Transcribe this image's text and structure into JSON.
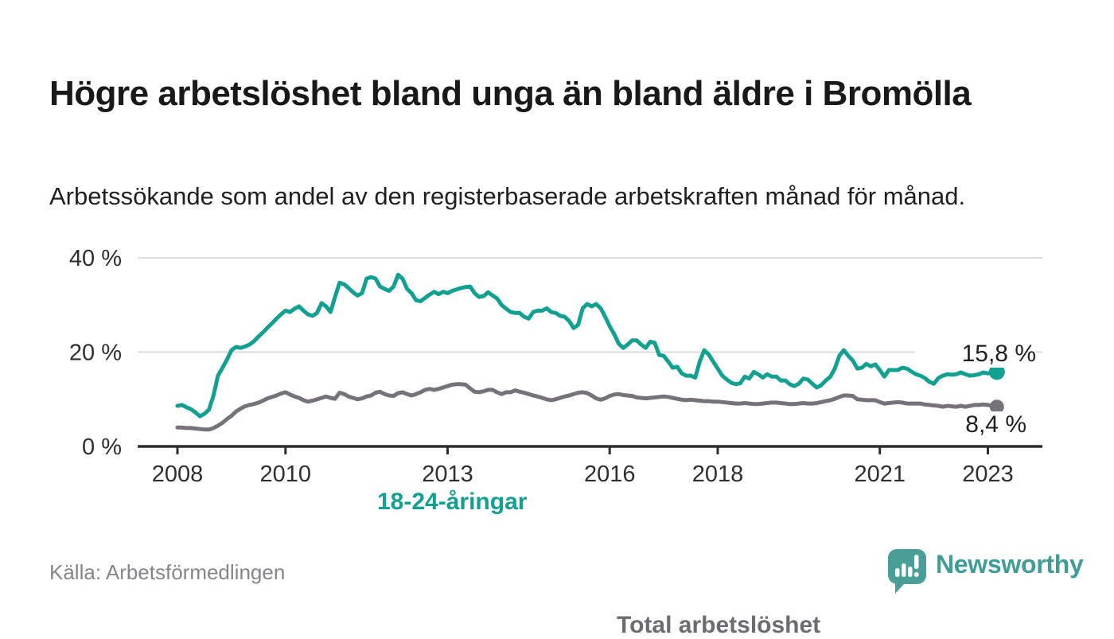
{
  "header": {
    "title": "Högre arbetslöshet bland unga än bland äldre i Bromölla",
    "subtitle": "Arbetssökande som andel av den registerbaserade arbetskraften månad för månad."
  },
  "footer": {
    "source": "Källa: Arbetsförmedlingen",
    "brand": "Newsworthy"
  },
  "colors": {
    "teal": "#12a091",
    "teal_brand": "#3f9c96",
    "gray_line": "#76717b",
    "gray_label": "#6e6a74",
    "title": "#191919",
    "subtitle": "#1f1f1f",
    "value": "#1f1f1f",
    "source": "#85858d",
    "grid": "#dcdcdc",
    "axis": "#2d2d2d"
  },
  "chart_data": {
    "type": "line",
    "x_start": "2008-01",
    "x_interval": "monthly",
    "x_end": "2023-03",
    "ylim": [
      0,
      42
    ],
    "grid": "horizontal-only",
    "y_ticks": [
      0,
      20,
      40
    ],
    "y_tick_labels": [
      "0 %",
      "20 %",
      "40 %"
    ],
    "x_tick_years": [
      2008,
      2010,
      2013,
      2016,
      2018,
      2021,
      2023
    ],
    "x_tick_labels": [
      "2008",
      "2010",
      "2013",
      "2016",
      "2018",
      "2021",
      "2023"
    ],
    "series": [
      {
        "name": "Total arbetslöshet",
        "label": "Total arbetslöshet",
        "end_label": "8,4 %",
        "end_value": 8.4,
        "color": "#76717b",
        "dot_radius": 9,
        "values": [
          4.0,
          4.0,
          3.9,
          3.9,
          3.8,
          3.7,
          3.6,
          3.6,
          3.9,
          4.4,
          5.0,
          5.8,
          6.5,
          7.4,
          8.0,
          8.5,
          8.8,
          9.0,
          9.3,
          9.7,
          10.2,
          10.5,
          10.8,
          11.2,
          11.5,
          11.0,
          10.6,
          10.3,
          9.8,
          9.5,
          9.7,
          10.0,
          10.3,
          10.6,
          10.3,
          10.1,
          11.4,
          11.1,
          10.6,
          10.3,
          10.0,
          10.2,
          10.6,
          10.8,
          11.4,
          11.6,
          11.1,
          10.8,
          10.7,
          11.3,
          11.5,
          11.1,
          10.8,
          11.1,
          11.5,
          12.0,
          12.2,
          12.0,
          12.2,
          12.5,
          12.8,
          13.1,
          13.2,
          13.2,
          13.1,
          12.3,
          11.6,
          11.5,
          11.7,
          12.0,
          12.0,
          11.5,
          11.1,
          11.5,
          11.5,
          11.9,
          11.6,
          11.4,
          11.1,
          10.8,
          10.6,
          10.3,
          10.0,
          9.8,
          10.0,
          10.3,
          10.6,
          10.8,
          11.1,
          11.4,
          11.5,
          11.3,
          10.8,
          10.2,
          9.9,
          10.2,
          10.7,
          11.0,
          11.1,
          10.9,
          10.8,
          10.7,
          10.4,
          10.3,
          10.2,
          10.3,
          10.4,
          10.5,
          10.6,
          10.5,
          10.3,
          10.1,
          9.9,
          9.8,
          9.9,
          9.8,
          9.7,
          9.6,
          9.6,
          9.5,
          9.5,
          9.4,
          9.3,
          9.2,
          9.1,
          9.1,
          9.2,
          9.1,
          9.0,
          9.0,
          9.1,
          9.2,
          9.3,
          9.3,
          9.2,
          9.1,
          9.0,
          9.0,
          9.1,
          9.2,
          9.1,
          9.1,
          9.2,
          9.4,
          9.6,
          9.8,
          10.1,
          10.5,
          10.8,
          10.8,
          10.7,
          10.0,
          9.9,
          9.8,
          9.8,
          9.8,
          9.4,
          9.1,
          9.2,
          9.3,
          9.4,
          9.3,
          9.1,
          9.1,
          9.1,
          9.1,
          8.9,
          8.8,
          8.7,
          8.6,
          8.4,
          8.6,
          8.5,
          8.4,
          8.6,
          8.4,
          8.6,
          8.8,
          8.8,
          8.9,
          8.8,
          8.6,
          8.4
        ]
      },
      {
        "name": "18-24-åringar",
        "label": "18-24-åringar",
        "end_label": "15,8 %",
        "end_value": 15.8,
        "color": "#12a091",
        "dot_radius": 10,
        "values": [
          8.6,
          8.8,
          8.3,
          7.9,
          7.2,
          6.4,
          6.9,
          7.8,
          10.8,
          15.0,
          16.7,
          18.4,
          20.4,
          21.1,
          20.9,
          21.2,
          21.6,
          22.3,
          23.3,
          24.2,
          25.2,
          26.1,
          27.1,
          28.0,
          28.8,
          28.5,
          29.2,
          29.7,
          28.8,
          28.0,
          27.7,
          28.3,
          30.4,
          29.7,
          28.5,
          31.7,
          34.7,
          34.4,
          33.6,
          32.7,
          32.0,
          32.5,
          35.6,
          35.9,
          35.6,
          33.9,
          33.4,
          33.0,
          33.9,
          36.4,
          35.6,
          33.4,
          32.5,
          31.0,
          30.8,
          31.5,
          32.2,
          32.8,
          32.3,
          32.8,
          32.5,
          33.0,
          33.3,
          33.6,
          33.8,
          33.9,
          32.5,
          31.7,
          31.9,
          32.7,
          32.0,
          31.4,
          30.0,
          29.2,
          28.5,
          28.3,
          28.3,
          27.5,
          27.1,
          28.5,
          28.8,
          28.8,
          29.3,
          28.5,
          28.3,
          27.7,
          27.5,
          26.6,
          25.1,
          25.8,
          29.3,
          30.2,
          29.7,
          30.2,
          29.3,
          27.5,
          25.5,
          23.8,
          21.8,
          20.9,
          21.6,
          22.5,
          22.5,
          21.6,
          20.9,
          22.2,
          22.0,
          19.4,
          19.2,
          18.0,
          16.7,
          16.9,
          15.5,
          15.0,
          15.0,
          14.6,
          18.0,
          20.4,
          19.5,
          18.0,
          16.5,
          15.0,
          14.2,
          13.5,
          13.2,
          13.4,
          14.8,
          14.4,
          15.8,
          15.3,
          14.6,
          15.3,
          14.8,
          14.8,
          14.0,
          14.0,
          13.2,
          12.8,
          13.3,
          14.4,
          14.2,
          13.3,
          12.5,
          13.0,
          14.0,
          14.8,
          16.5,
          19.2,
          20.4,
          19.2,
          18.2,
          16.5,
          16.7,
          17.5,
          17.0,
          17.4,
          16.2,
          14.8,
          16.2,
          16.2,
          16.2,
          16.7,
          16.5,
          15.9,
          15.3,
          15.0,
          14.5,
          13.7,
          13.3,
          14.5,
          15.0,
          15.3,
          15.2,
          15.3,
          15.7,
          15.3,
          15.0,
          15.1,
          15.3,
          15.7,
          15.5,
          15.7,
          15.8
        ]
      }
    ]
  }
}
